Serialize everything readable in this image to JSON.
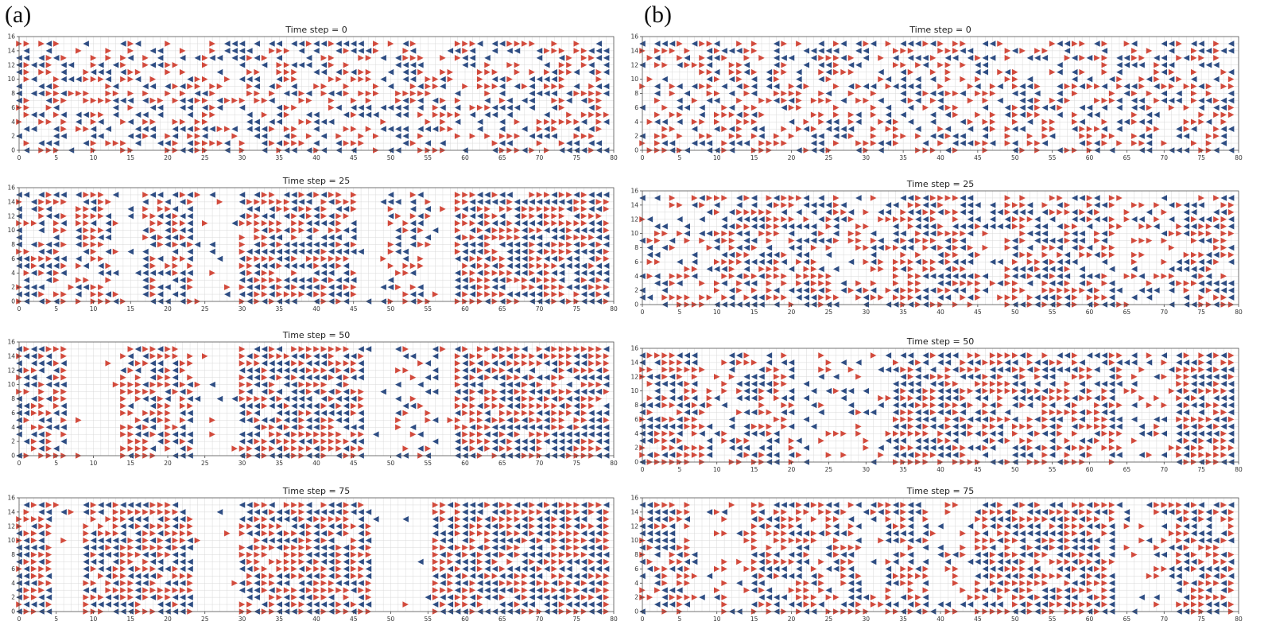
{
  "panels": [
    {
      "label": "(a)"
    },
    {
      "label": "(b)"
    }
  ],
  "colors": {
    "right_mover": "#d24a3c",
    "left_mover": "#2e4d83",
    "grid": "#d9d9d9",
    "frame": "#555555"
  },
  "chart_data": [
    {
      "panel": "(a)",
      "type": "scatter",
      "title": "Time step = 0",
      "xlim": [
        0,
        80
      ],
      "ylim": [
        0,
        16
      ],
      "xticks": [
        0,
        5,
        10,
        15,
        20,
        25,
        30,
        35,
        40,
        45,
        50,
        55,
        60,
        65,
        70,
        75,
        80
      ],
      "yticks": [
        0,
        2,
        4,
        6,
        8,
        10,
        12,
        14,
        16
      ],
      "grid": true,
      "markers": {
        "right": "red right-pointing triangle",
        "left": "blue left-pointing triangle"
      },
      "density": 0.55,
      "clusters": []
    },
    {
      "panel": "(a)",
      "type": "scatter",
      "title": "Time step = 25",
      "xlim": [
        0,
        80
      ],
      "ylim": [
        0,
        16
      ],
      "xticks": [
        0,
        5,
        10,
        15,
        20,
        25,
        30,
        35,
        40,
        45,
        50,
        55,
        60,
        65,
        70,
        75,
        80
      ],
      "yticks": [
        0,
        2,
        4,
        6,
        8,
        10,
        12,
        14,
        16
      ],
      "grid": true,
      "markers": {
        "right": "red right-pointing triangle",
        "left": "blue left-pointing triangle"
      },
      "density": 0.1,
      "clusters": [
        [
          0,
          6,
          0.75
        ],
        [
          8,
          12,
          0.7
        ],
        [
          17,
          23,
          0.8
        ],
        [
          30,
          45,
          0.88
        ],
        [
          50,
          55,
          0.55
        ],
        [
          59,
          79,
          0.93
        ]
      ]
    },
    {
      "panel": "(a)",
      "type": "scatter",
      "title": "Time step = 50",
      "xlim": [
        0,
        80
      ],
      "ylim": [
        0,
        16
      ],
      "xticks": [
        0,
        5,
        10,
        15,
        20,
        25,
        30,
        35,
        40,
        45,
        50,
        55,
        60,
        65,
        70,
        75,
        80
      ],
      "yticks": [
        0,
        2,
        4,
        6,
        8,
        10,
        12,
        14,
        16
      ],
      "grid": true,
      "markers": {
        "right": "red right-pointing triangle",
        "left": "blue left-pointing triangle"
      },
      "density": 0.06,
      "clusters": [
        [
          0,
          6,
          0.8
        ],
        [
          14,
          23,
          0.85
        ],
        [
          30,
          46,
          0.92
        ],
        [
          51,
          56,
          0.5
        ],
        [
          59,
          79,
          0.95
        ]
      ]
    },
    {
      "panel": "(a)",
      "type": "scatter",
      "title": "Time step = 75",
      "xlim": [
        0,
        80
      ],
      "ylim": [
        0,
        16
      ],
      "xticks": [
        0,
        5,
        10,
        15,
        20,
        25,
        30,
        35,
        40,
        45,
        50,
        55,
        60,
        65,
        70,
        75,
        80
      ],
      "yticks": [
        0,
        2,
        4,
        6,
        8,
        10,
        12,
        14,
        16
      ],
      "grid": true,
      "markers": {
        "right": "red right-pointing triangle",
        "left": "blue left-pointing triangle"
      },
      "density": 0.05,
      "clusters": [
        [
          0,
          4,
          0.85
        ],
        [
          9,
          23,
          0.88
        ],
        [
          30,
          47,
          0.92
        ],
        [
          56,
          79,
          0.95
        ]
      ]
    },
    {
      "panel": "(b)",
      "type": "scatter",
      "title": "Time step = 0",
      "xlim": [
        0,
        80
      ],
      "ylim": [
        0,
        16
      ],
      "xticks": [
        0,
        5,
        10,
        15,
        20,
        25,
        30,
        35,
        40,
        45,
        50,
        55,
        60,
        65,
        70,
        75,
        80
      ],
      "yticks": [
        0,
        2,
        4,
        6,
        8,
        10,
        12,
        14,
        16
      ],
      "grid": true,
      "markers": {
        "right": "red right-pointing triangle",
        "left": "blue left-pointing triangle"
      },
      "density": 0.55,
      "clusters": []
    },
    {
      "panel": "(b)",
      "type": "scatter",
      "title": "Time step = 25",
      "xlim": [
        0,
        80
      ],
      "ylim": [
        0,
        16
      ],
      "xticks": [
        0,
        5,
        10,
        15,
        20,
        25,
        30,
        35,
        40,
        45,
        50,
        55,
        60,
        65,
        70,
        75,
        80
      ],
      "yticks": [
        0,
        2,
        4,
        6,
        8,
        10,
        12,
        14,
        16
      ],
      "grid": true,
      "markers": {
        "right": "red right-pointing triangle",
        "left": "blue left-pointing triangle"
      },
      "density": 0.4,
      "clusters": [
        [
          10,
          25,
          0.75
        ],
        [
          34,
          44,
          0.85
        ],
        [
          49,
          63,
          0.8
        ],
        [
          73,
          79,
          0.8
        ]
      ]
    },
    {
      "panel": "(b)",
      "type": "scatter",
      "title": "Time step = 50",
      "xlim": [
        0,
        80
      ],
      "ylim": [
        0,
        16
      ],
      "xticks": [
        0,
        5,
        10,
        15,
        20,
        25,
        30,
        35,
        40,
        45,
        50,
        55,
        60,
        65,
        70,
        75,
        80
      ],
      "yticks": [
        0,
        2,
        4,
        6,
        8,
        10,
        12,
        14,
        16
      ],
      "grid": true,
      "markers": {
        "right": "red right-pointing triangle",
        "left": "blue left-pointing triangle"
      },
      "density": 0.3,
      "clusters": [
        [
          0,
          7,
          0.85
        ],
        [
          12,
          20,
          0.7
        ],
        [
          34,
          49,
          0.85
        ],
        [
          49,
          64,
          0.75
        ],
        [
          72,
          79,
          0.9
        ]
      ]
    },
    {
      "panel": "(b)",
      "type": "scatter",
      "title": "Time step = 75",
      "xlim": [
        0,
        80
      ],
      "ylim": [
        0,
        16
      ],
      "xticks": [
        0,
        5,
        10,
        15,
        20,
        25,
        30,
        35,
        40,
        45,
        50,
        55,
        60,
        65,
        70,
        75,
        80
      ],
      "yticks": [
        0,
        2,
        4,
        6,
        8,
        10,
        12,
        14,
        16
      ],
      "grid": true,
      "markers": {
        "right": "red right-pointing triangle",
        "left": "blue left-pointing triangle"
      },
      "density": 0.25,
      "clusters": [
        [
          0,
          6,
          0.85
        ],
        [
          15,
          29,
          0.75
        ],
        [
          33,
          38,
          0.8
        ],
        [
          45,
          63,
          0.9
        ],
        [
          72,
          79,
          0.9
        ]
      ]
    }
  ]
}
